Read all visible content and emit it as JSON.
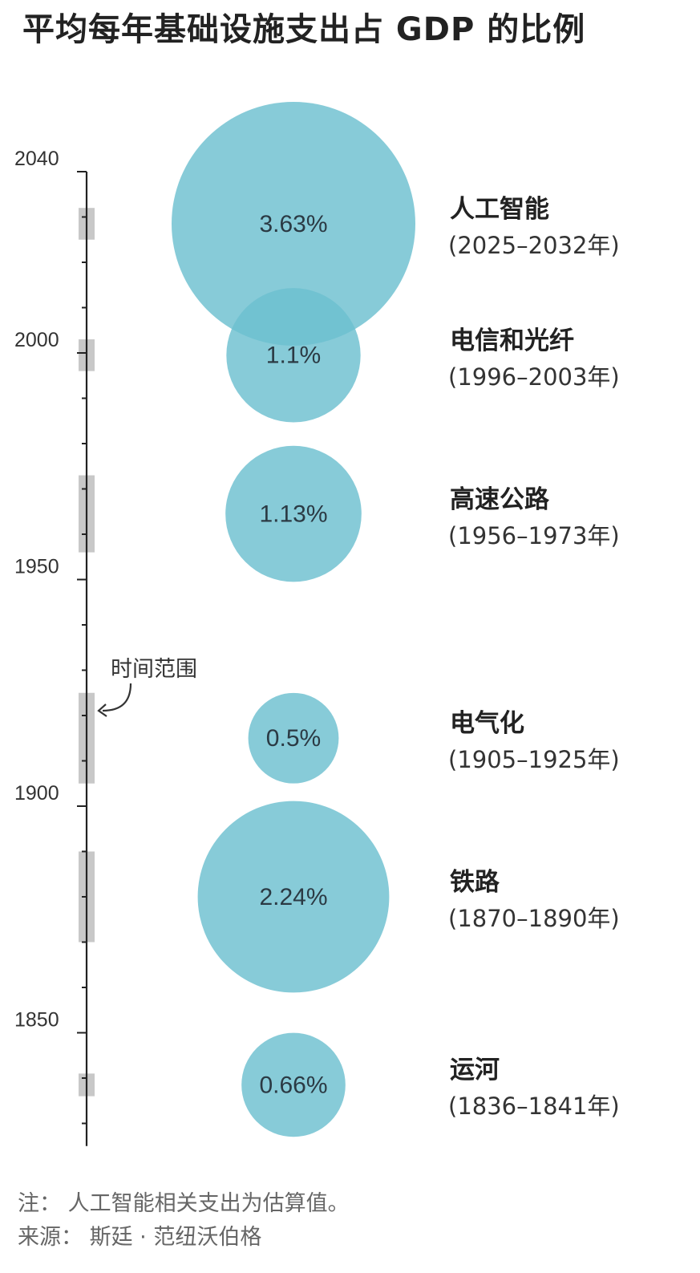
{
  "chart_data": {
    "type": "bubble",
    "title": "平均每年基础设施支出占 GDP 的比例",
    "y_axis": {
      "range": [
        1825,
        2040
      ],
      "major_ticks": [
        1850,
        1900,
        1950,
        2000,
        2040
      ],
      "minor_tick_step": 10
    },
    "range_annotation": "时间范围",
    "series": [
      {
        "name": "人工智能",
        "period": "(2025–2032年)",
        "start": 2025,
        "end": 2032,
        "value": 3.63,
        "value_label": "3.63%"
      },
      {
        "name": "电信和光纤",
        "period": "(1996–2003年)",
        "start": 1996,
        "end": 2003,
        "value": 1.1,
        "value_label": "1.1%"
      },
      {
        "name": "高速公路",
        "period": "(1956–1973年)",
        "start": 1956,
        "end": 1973,
        "value": 1.13,
        "value_label": "1.13%"
      },
      {
        "name": "电气化",
        "period": "(1905–1925年)",
        "start": 1905,
        "end": 1925,
        "value": 0.5,
        "value_label": "0.5%"
      },
      {
        "name": "铁路",
        "period": "(1870–1890年)",
        "start": 1870,
        "end": 1890,
        "value": 2.24,
        "value_label": "2.24%"
      },
      {
        "name": "运河",
        "period": "(1836–1841年)",
        "start": 1836,
        "end": 1841,
        "value": 0.66,
        "value_label": "0.66%"
      }
    ],
    "note": "注：  人工智能相关支出为估算值。",
    "source": "来源：  斯廷 · 范纽沃伯格",
    "colors": {
      "bubble": "#6cbfd0",
      "range_bar": "#c8c8c8",
      "axis": "#222222"
    }
  }
}
